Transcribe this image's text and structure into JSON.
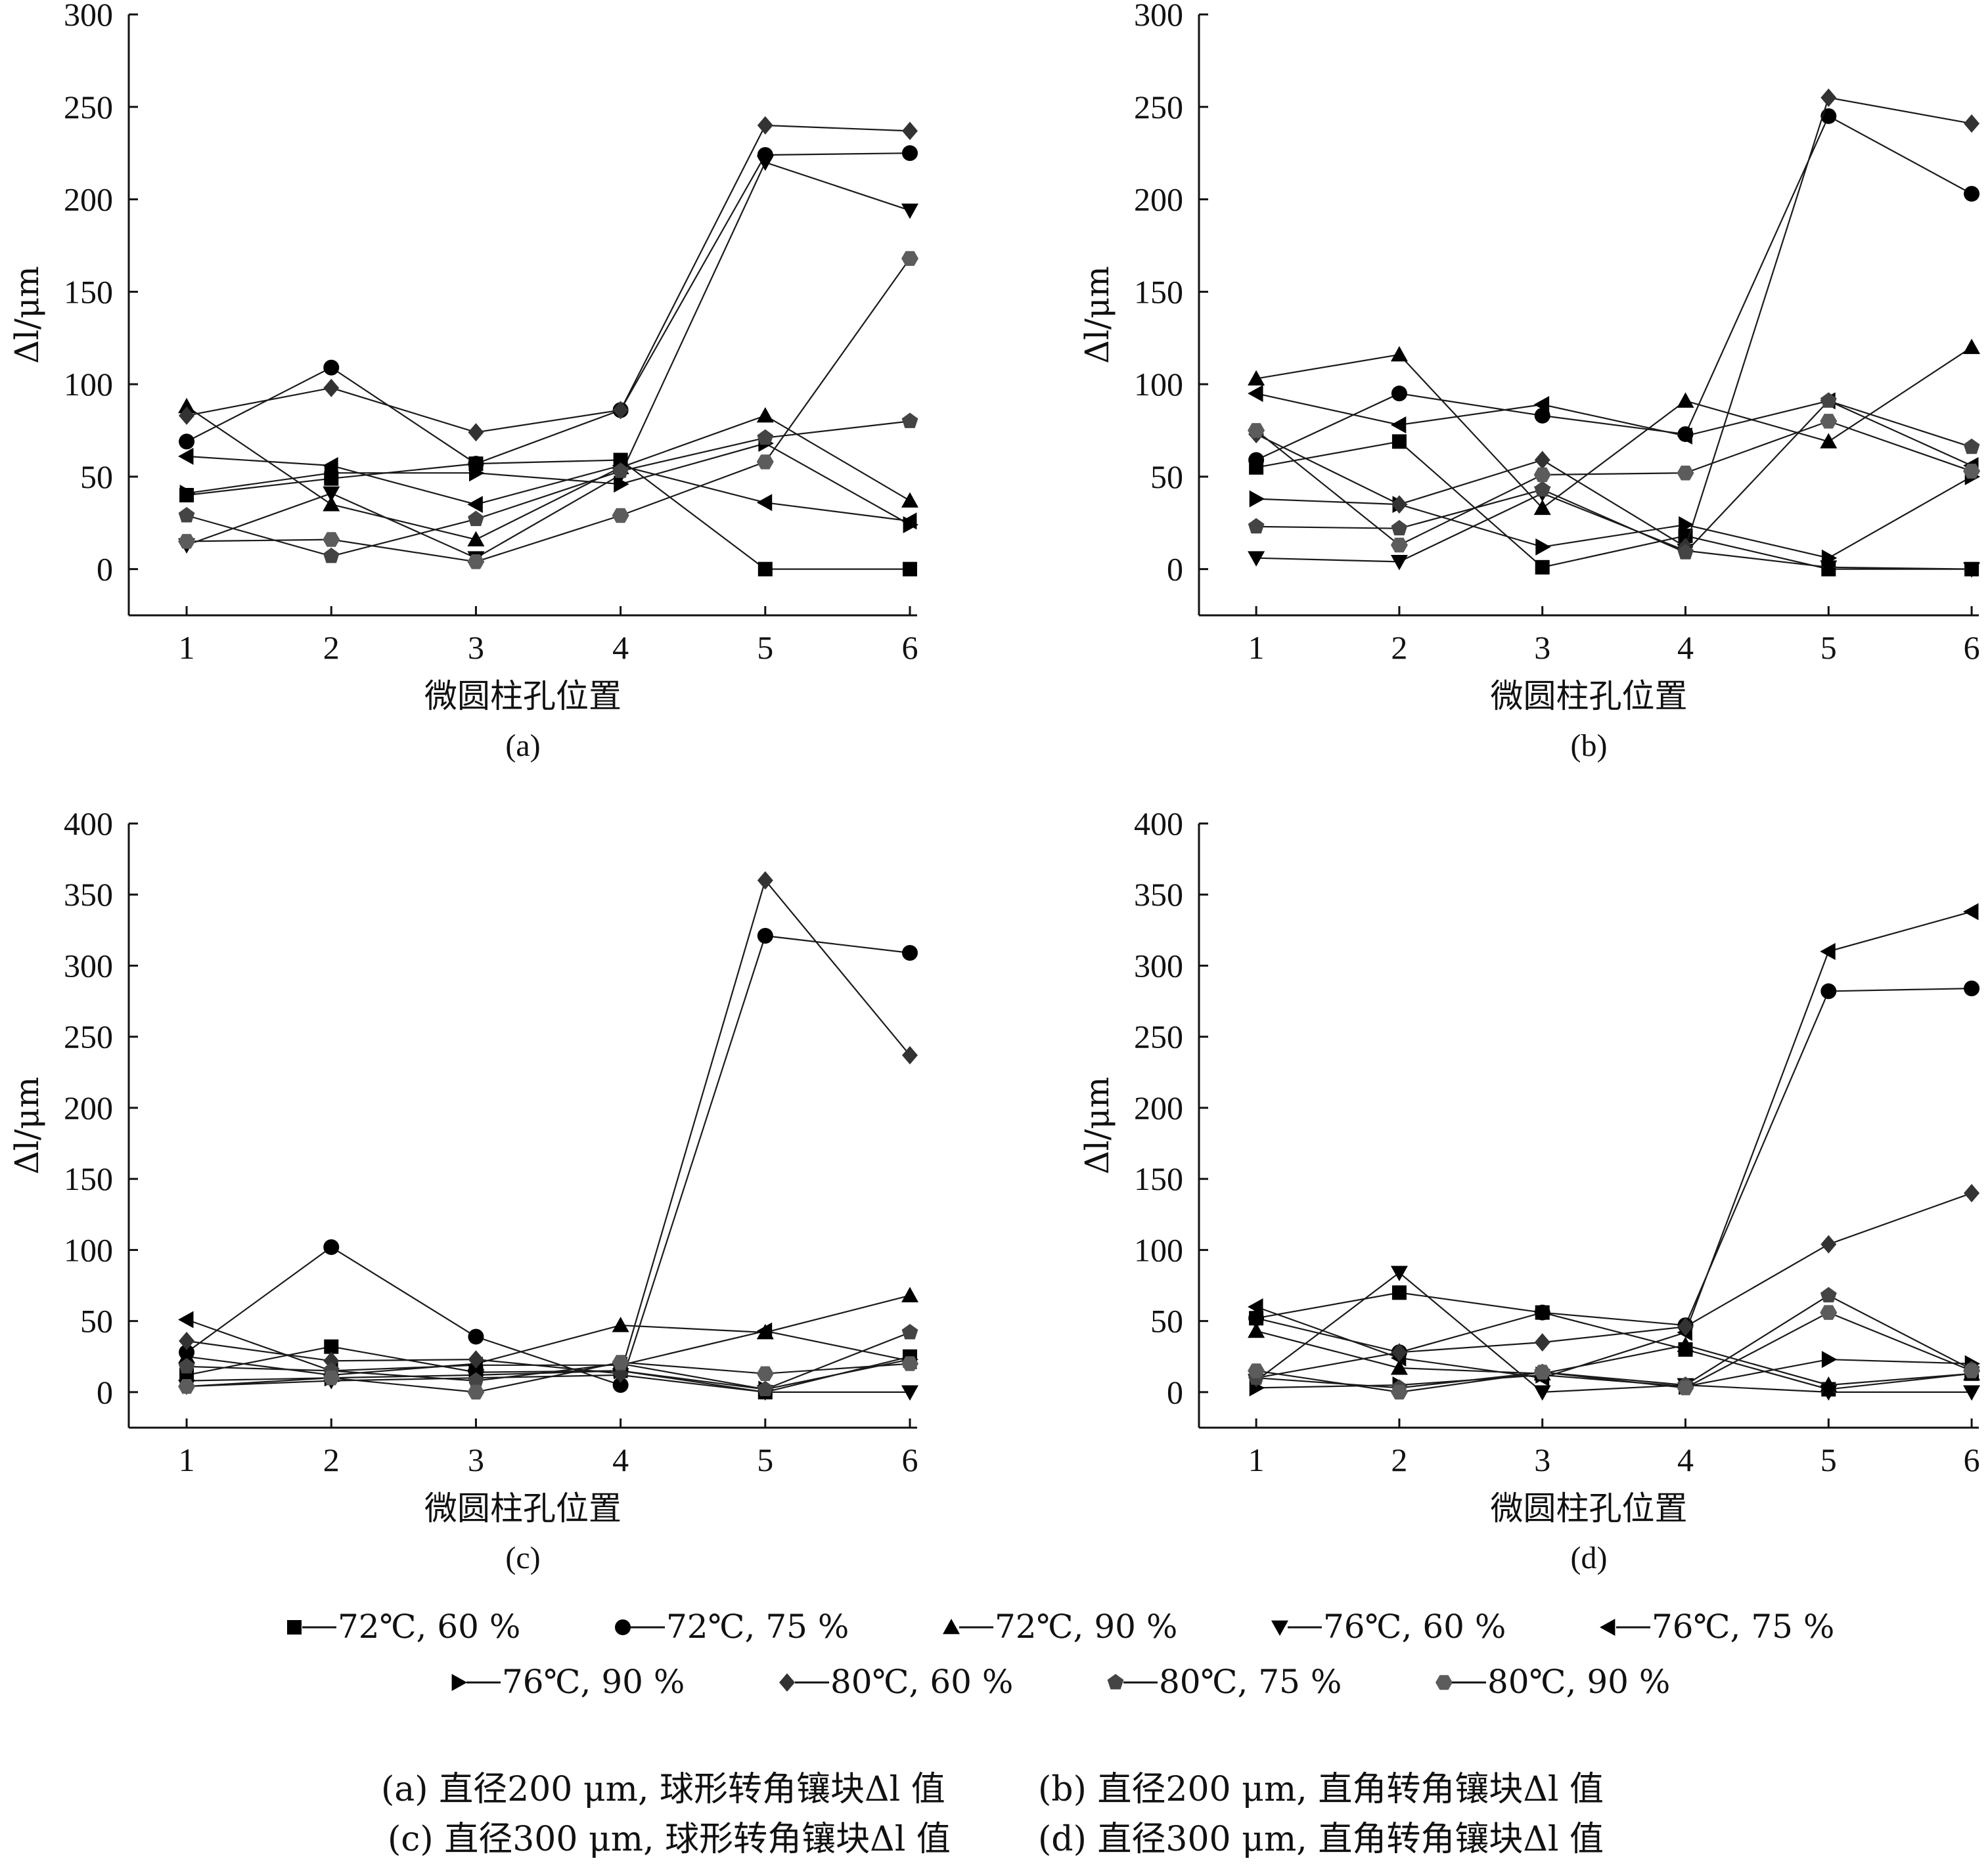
{
  "chart_data": [
    {
      "type": "line",
      "panel_label": "(a)",
      "xlabel": "微圆柱孔位置",
      "ylabel": "Δl/μm",
      "x": [
        1,
        2,
        3,
        4,
        5,
        6
      ],
      "xlim": [
        0.6,
        6.05
      ],
      "ylim": [
        -25,
        300
      ],
      "yticks": [
        0,
        50,
        100,
        150,
        200,
        250,
        300
      ],
      "series": [
        {
          "name": "72℃, 60 %",
          "values": [
            40,
            49,
            57,
            59,
            0,
            0
          ]
        },
        {
          "name": "72℃, 75 %",
          "values": [
            69,
            109,
            57,
            86,
            224,
            225
          ]
        },
        {
          "name": "72℃, 90 %",
          "values": [
            88,
            35,
            16,
            55,
            83,
            37
          ]
        },
        {
          "name": "76℃, 60 %",
          "values": [
            13,
            41,
            6,
            51,
            220,
            194
          ]
        },
        {
          "name": "76℃, 75 %",
          "values": [
            61,
            56,
            35,
            56,
            36,
            26
          ]
        },
        {
          "name": "76℃, 90 %",
          "values": [
            41,
            52,
            52,
            46,
            68,
            24
          ]
        },
        {
          "name": "80℃, 60 %",
          "values": [
            83,
            98,
            74,
            86,
            240,
            237
          ]
        },
        {
          "name": "80℃, 75 %",
          "values": [
            29,
            7,
            27,
            53,
            71,
            80
          ]
        },
        {
          "name": "80℃, 90 %",
          "values": [
            15,
            16,
            4,
            29,
            58,
            168
          ]
        }
      ]
    },
    {
      "type": "line",
      "panel_label": "(b)",
      "xlabel": "微圆柱孔位置",
      "ylabel": "Δl/μm",
      "x": [
        1,
        2,
        3,
        4,
        5,
        6
      ],
      "xlim": [
        0.6,
        6.05
      ],
      "ylim": [
        -25,
        300
      ],
      "yticks": [
        0,
        50,
        100,
        150,
        200,
        250,
        300
      ],
      "series": [
        {
          "name": "72℃, 60 %",
          "values": [
            55,
            69,
            1,
            18,
            0,
            0
          ]
        },
        {
          "name": "72℃, 75 %",
          "values": [
            59,
            95,
            83,
            73,
            245,
            203
          ]
        },
        {
          "name": "72℃, 90 %",
          "values": [
            103,
            116,
            33,
            91,
            69,
            120
          ]
        },
        {
          "name": "76℃, 60 %",
          "values": [
            6,
            4,
            41,
            10,
            1,
            0
          ]
        },
        {
          "name": "76℃, 75 %",
          "values": [
            95,
            78,
            89,
            72,
            91,
            56
          ]
        },
        {
          "name": "76℃, 90 %",
          "values": [
            38,
            35,
            12,
            24,
            6,
            50
          ]
        },
        {
          "name": "80℃, 60 %",
          "values": [
            73,
            35,
            59,
            12,
            255,
            241
          ]
        },
        {
          "name": "80℃, 75 %",
          "values": [
            23,
            22,
            43,
            9,
            91,
            66
          ]
        },
        {
          "name": "80℃, 90 %",
          "values": [
            75,
            13,
            51,
            52,
            80,
            53
          ]
        }
      ]
    },
    {
      "type": "line",
      "panel_label": "(c)",
      "xlabel": "微圆柱孔位置",
      "ylabel": "Δl/μm",
      "x": [
        1,
        2,
        3,
        4,
        5,
        6
      ],
      "xlim": [
        0.6,
        6.05
      ],
      "ylim": [
        -25,
        400
      ],
      "yticks": [
        0,
        50,
        100,
        150,
        200,
        250,
        300,
        350,
        400
      ],
      "series": [
        {
          "name": "72℃, 60 %",
          "values": [
            12,
            32,
            14,
            15,
            0,
            25
          ]
        },
        {
          "name": "72℃, 75 %",
          "values": [
            28,
            102,
            39,
            5,
            321,
            309
          ]
        },
        {
          "name": "72℃, 90 %",
          "values": [
            25,
            12,
            20,
            47,
            42,
            68
          ]
        },
        {
          "name": "76℃, 60 %",
          "values": [
            4,
            8,
            10,
            12,
            0,
            0
          ]
        },
        {
          "name": "76℃, 75 %",
          "values": [
            51,
            15,
            19,
            19,
            43,
            22
          ]
        },
        {
          "name": "76℃, 90 %",
          "values": [
            8,
            10,
            12,
            15,
            2,
            23
          ]
        },
        {
          "name": "80℃, 60 %",
          "values": [
            36,
            22,
            23,
            13,
            360,
            237
          ]
        },
        {
          "name": "80℃, 75 %",
          "values": [
            18,
            15,
            8,
            20,
            2,
            42
          ]
        },
        {
          "name": "80℃, 90 %",
          "values": [
            4,
            10,
            0,
            21,
            13,
            20
          ]
        }
      ]
    },
    {
      "type": "line",
      "panel_label": "(d)",
      "xlabel": "微圆柱孔位置",
      "ylabel": "Δl/μm",
      "x": [
        1,
        2,
        3,
        4,
        5,
        6
      ],
      "xlim": [
        0.6,
        6.05
      ],
      "ylim": [
        -25,
        400
      ],
      "yticks": [
        0,
        50,
        100,
        150,
        200,
        250,
        300,
        350,
        400
      ],
      "series": [
        {
          "name": "72℃, 60 %",
          "values": [
            52,
            70,
            56,
            30,
            2,
            13
          ]
        },
        {
          "name": "72℃, 75 %",
          "values": [
            52,
            28,
            56,
            47,
            282,
            284
          ]
        },
        {
          "name": "72℃, 90 %",
          "values": [
            43,
            17,
            13,
            33,
            5,
            13
          ]
        },
        {
          "name": "76℃, 60 %",
          "values": [
            8,
            84,
            0,
            5,
            0,
            0
          ]
        },
        {
          "name": "76℃, 75 %",
          "values": [
            60,
            24,
            10,
            42,
            310,
            338
          ]
        },
        {
          "name": "76℃, 90 %",
          "values": [
            3,
            5,
            12,
            4,
            23,
            20
          ]
        },
        {
          "name": "80℃, 60 %",
          "values": [
            10,
            28,
            35,
            46,
            104,
            140
          ]
        },
        {
          "name": "80℃, 75 %",
          "values": [
            10,
            3,
            14,
            5,
            68,
            16
          ]
        },
        {
          "name": "80℃, 90 %",
          "values": [
            15,
            0,
            14,
            3,
            56,
            15
          ]
        }
      ]
    }
  ],
  "legend": {
    "entries": [
      {
        "label": "72℃, 60 %",
        "marker": "square",
        "color": "#000000"
      },
      {
        "label": "72℃, 75 %",
        "marker": "circle",
        "color": "#000000"
      },
      {
        "label": "72℃, 90 %",
        "marker": "triangle-up",
        "color": "#000000"
      },
      {
        "label": "76℃, 60 %",
        "marker": "triangle-down",
        "color": "#000000"
      },
      {
        "label": "76℃, 75 %",
        "marker": "triangle-left",
        "color": "#000000"
      },
      {
        "label": "76℃, 90 %",
        "marker": "triangle-right",
        "color": "#000000"
      },
      {
        "label": "80℃, 60 %",
        "marker": "diamond",
        "color": "#333333"
      },
      {
        "label": "80℃, 75 %",
        "marker": "pentagon",
        "color": "#444444"
      },
      {
        "label": "80℃, 90 %",
        "marker": "hexagon",
        "color": "#5c5c5c"
      }
    ]
  },
  "caption": {
    "a": "(a) 直径200 μm, 球形转角镶块Δl 值",
    "b": "(b) 直径200 μm, 直角转角镶块Δl 值",
    "c": "(c) 直径300 μm, 球形转角镶块Δl 值",
    "d": "(d)  直径300 μm, 直角转角镶块Δl 值"
  }
}
